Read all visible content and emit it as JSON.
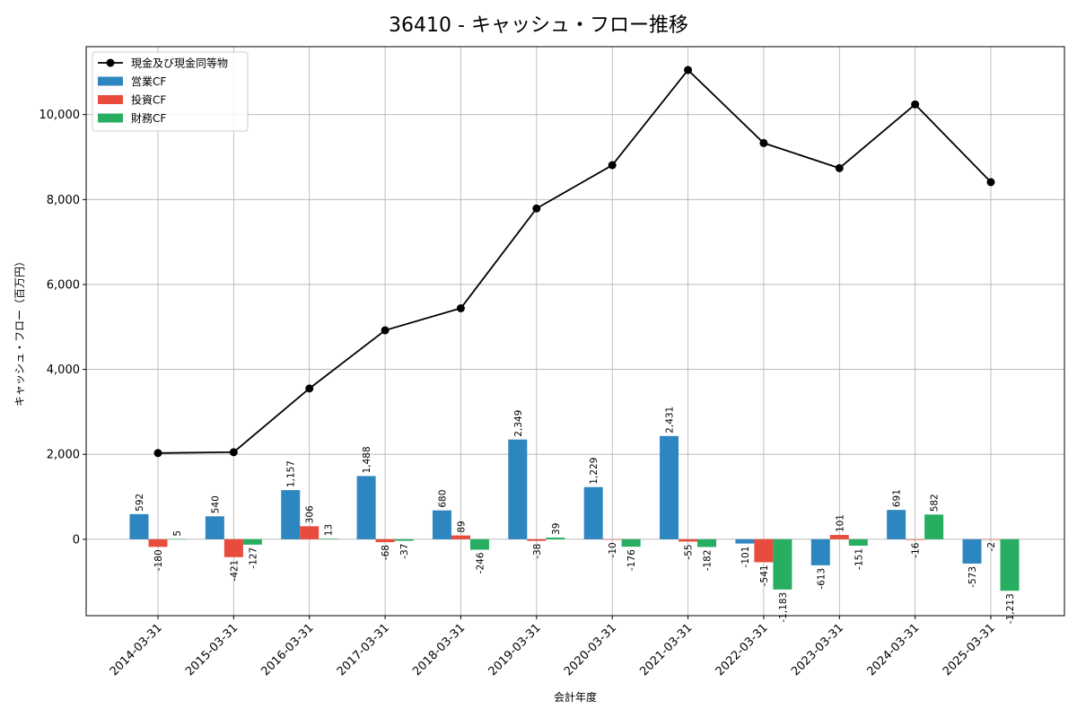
{
  "chart_data": {
    "type": "bar",
    "title": "36410 - キャッシュ・フロー推移",
    "xlabel": "会計年度",
    "ylabel": "キャッシュ・フロー（百万円）",
    "ylim": [
      -1800,
      11600
    ],
    "yticks": [
      0,
      2000,
      4000,
      6000,
      8000,
      10000
    ],
    "ytick_labels": [
      "0",
      "2,000",
      "4,000",
      "6,000",
      "8,000",
      "10,000"
    ],
    "grid": true,
    "legend_position": "top-left",
    "categories": [
      "2014-03-31",
      "2015-03-31",
      "2016-03-31",
      "2017-03-31",
      "2018-03-31",
      "2019-03-31",
      "2020-03-31",
      "2021-03-31",
      "2022-03-31",
      "2023-03-31",
      "2024-03-31",
      "2025-03-31"
    ],
    "series": [
      {
        "name": "営業CF",
        "kind": "bar",
        "color": "#2e86c1",
        "values": [
          592,
          540,
          1157,
          1488,
          680,
          2349,
          1229,
          2431,
          -101,
          -613,
          691,
          -573
        ],
        "labels": [
          "592",
          "540",
          "1,157",
          "1,488",
          "680",
          "2,349",
          "1,229",
          "2,431",
          "-101",
          "-613",
          "691",
          "-573"
        ]
      },
      {
        "name": "投資CF",
        "kind": "bar",
        "color": "#e74c3c",
        "values": [
          -180,
          -421,
          306,
          -68,
          89,
          -38,
          -10,
          -55,
          -541,
          101,
          -16,
          -2
        ],
        "labels": [
          "-180",
          "-421",
          "306",
          "-68",
          "89",
          "-38",
          "-10",
          "-55",
          "-541",
          "101",
          "-16",
          "-2"
        ]
      },
      {
        "name": "財務CF",
        "kind": "bar",
        "color": "#27ae60",
        "values": [
          5,
          -127,
          13,
          -37,
          -246,
          39,
          -176,
          -182,
          -1183,
          -151,
          582,
          -1213
        ],
        "labels": [
          "5",
          "-127",
          "13",
          "-37",
          "-246",
          "39",
          "-176",
          "-182",
          "-1,183",
          "-151",
          "582",
          "-1,213"
        ]
      },
      {
        "name": "現金及び現金同等物",
        "kind": "line",
        "color": "#000000",
        "values": [
          2030,
          2050,
          3550,
          4920,
          5440,
          7790,
          8810,
          11050,
          9330,
          8740,
          10240,
          8410
        ]
      }
    ]
  }
}
